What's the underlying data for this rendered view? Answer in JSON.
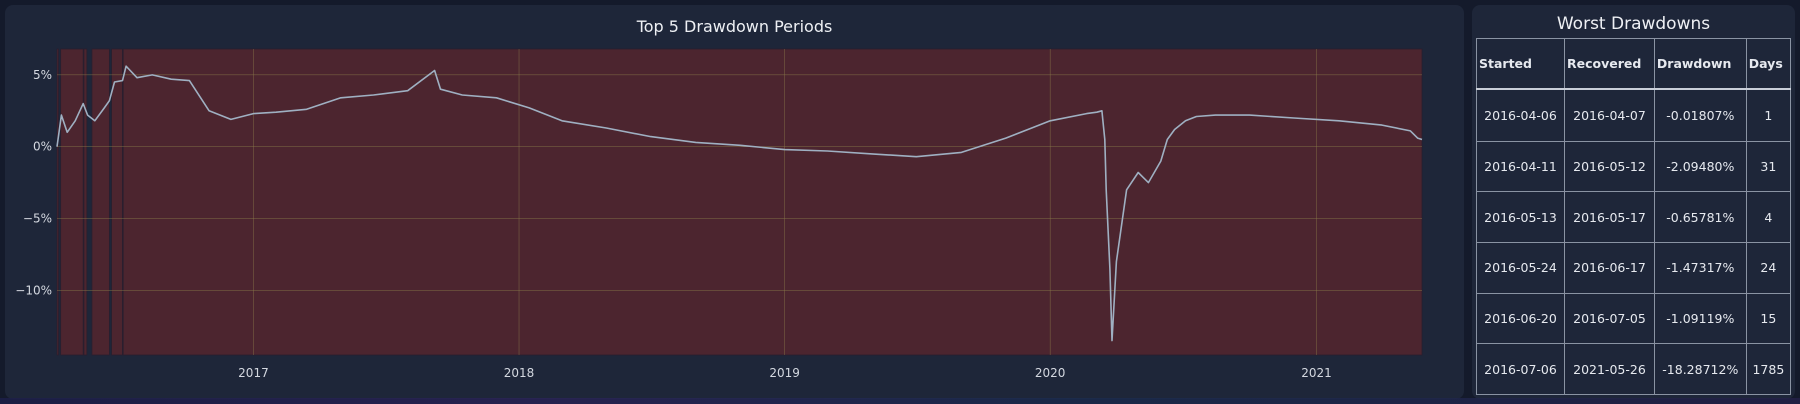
{
  "chart_data": {
    "type": "line",
    "title": "Top 5 Drawdown Periods",
    "x_tick_labels": [
      "2017",
      "2018",
      "2019",
      "2020",
      "2021"
    ],
    "y_tick_labels": [
      "5%",
      "0%",
      "−5%",
      "−10%"
    ],
    "y_ticks": [
      5,
      0,
      -5,
      -10
    ],
    "xlim": [
      "2016-04-06",
      "2021-05-26"
    ],
    "ylim": [
      -14.5,
      6.8
    ],
    "grid": true,
    "line_color": "#9fb0c2",
    "shade_color": "#4c252f",
    "shaded_periods": [
      {
        "start": "2016-04-06",
        "end": "2016-04-07"
      },
      {
        "start": "2016-04-11",
        "end": "2016-05-12"
      },
      {
        "start": "2016-05-13",
        "end": "2016-05-17"
      },
      {
        "start": "2016-05-24",
        "end": "2016-06-17"
      },
      {
        "start": "2016-06-20",
        "end": "2016-07-05"
      },
      {
        "start": "2016-07-06",
        "end": "2021-05-26"
      }
    ],
    "series": [
      {
        "x": [
          "2016-04-06",
          "2016-04-12",
          "2016-04-20",
          "2016-05-01",
          "2016-05-12",
          "2016-05-18",
          "2016-05-28",
          "2016-06-10",
          "2016-06-17",
          "2016-06-24",
          "2016-07-05",
          "2016-07-10",
          "2016-07-25",
          "2016-08-15",
          "2016-09-10",
          "2016-10-05",
          "2016-11-01",
          "2016-12-01",
          "2017-01-01",
          "2017-02-01",
          "2017-03-15",
          "2017-05-01",
          "2017-06-15",
          "2017-08-01",
          "2017-09-07",
          "2017-09-15",
          "2017-10-15",
          "2017-12-01",
          "2018-01-15",
          "2018-03-01",
          "2018-05-01",
          "2018-07-01",
          "2018-09-01",
          "2018-11-01",
          "2019-01-01",
          "2019-03-01",
          "2019-05-01",
          "2019-07-01",
          "2019-09-01",
          "2019-11-01",
          "2020-01-01",
          "2020-02-20",
          "2020-03-05",
          "2020-03-12",
          "2020-03-16",
          "2020-03-18",
          "2020-03-23",
          "2020-03-26",
          "2020-04-01",
          "2020-04-15",
          "2020-05-01",
          "2020-05-15",
          "2020-06-01",
          "2020-06-10",
          "2020-06-20",
          "2020-07-05",
          "2020-07-20",
          "2020-08-15",
          "2020-10-01",
          "2020-12-01",
          "2021-02-01",
          "2021-04-01",
          "2021-05-10",
          "2021-05-20",
          "2021-05-26"
        ],
        "y": [
          0.0,
          2.2,
          1.0,
          1.8,
          3.0,
          2.2,
          1.8,
          2.7,
          3.2,
          4.5,
          4.6,
          5.6,
          4.8,
          5.0,
          4.7,
          4.6,
          2.5,
          1.9,
          2.3,
          2.4,
          2.6,
          3.4,
          3.6,
          3.9,
          5.3,
          4.0,
          3.6,
          3.4,
          2.7,
          1.8,
          1.3,
          0.7,
          0.3,
          0.1,
          -0.2,
          -0.3,
          -0.5,
          -0.7,
          -0.4,
          0.6,
          1.8,
          2.3,
          2.4,
          2.5,
          0.5,
          -3.0,
          -8.5,
          -13.5,
          -8.0,
          -3.0,
          -1.8,
          -2.5,
          -1.0,
          0.5,
          1.2,
          1.8,
          2.1,
          2.2,
          2.2,
          2.0,
          1.8,
          1.5,
          1.1,
          0.6,
          0.5
        ]
      }
    ]
  },
  "table": {
    "title": "Worst Drawdowns",
    "headers": [
      "Started",
      "Recovered",
      "Drawdown",
      "Days"
    ],
    "rows": [
      [
        "2016-04-06",
        "2016-04-07",
        "-0.01807%",
        "1"
      ],
      [
        "2016-04-11",
        "2016-05-12",
        "-2.09480%",
        "31"
      ],
      [
        "2016-05-13",
        "2016-05-17",
        "-0.65781%",
        "4"
      ],
      [
        "2016-05-24",
        "2016-06-17",
        "-1.47317%",
        "24"
      ],
      [
        "2016-06-20",
        "2016-07-05",
        "-1.09119%",
        "15"
      ],
      [
        "2016-07-06",
        "2021-05-26",
        "-18.28712%",
        "1785"
      ]
    ]
  },
  "colors": {
    "background": "#141a2b",
    "panel": "#1e2639",
    "grid": "#8a7a4a",
    "text": "#e6e9ef"
  }
}
